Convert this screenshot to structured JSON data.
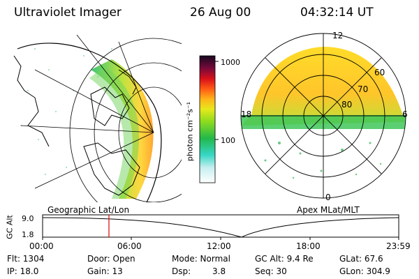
{
  "header": {
    "instrument": "Ultraviolet Imager",
    "date": "26 Aug 00",
    "time": "04:32:14 UT"
  },
  "colorbar": {
    "unit_label": "photon cm⁻²s⁻¹",
    "tick_1000": "1000",
    "tick_100": "100"
  },
  "geo_panel": {
    "caption": "Geographic Lat/Lon"
  },
  "apex_panel": {
    "caption": "Apex MLat/MLT",
    "mlt_12": "12",
    "mlt_18": "18",
    "mlt_6": "6",
    "mlt_0": "0",
    "lat_60": "60",
    "lat_70": "70",
    "lat_80": "80"
  },
  "altitude_plot": {
    "ylabel": "GC Alt",
    "ytick_top": "9.0",
    "ytick_bottom": "1.8",
    "xticks": [
      "00:00",
      "06:00",
      "12:00",
      "18:00",
      "23:59"
    ],
    "marker_time": "04:32:14",
    "marker_color": "#e00000"
  },
  "footer": {
    "flt": "Flt: 1304",
    "ip": "IP: 18.0",
    "door": "Door: Open",
    "gain": "Gain: 13",
    "mode": "Mode: Normal",
    "dsp_label": "Dsp:",
    "dsp_value": "3.8",
    "gcalt": "GC Alt: 9.4 Re",
    "seq": "Seq: 30",
    "glat": "GLat:  67.6",
    "glon": "GLon: 304.9"
  }
}
